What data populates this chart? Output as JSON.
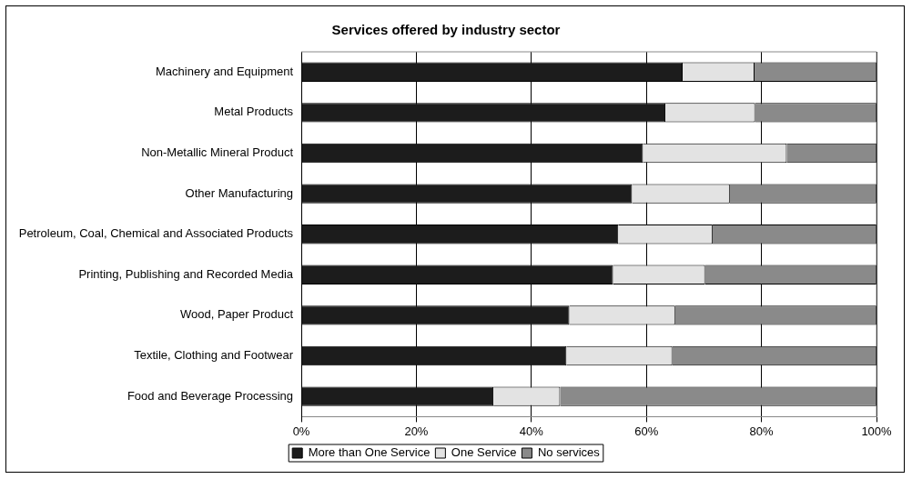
{
  "chart_data": {
    "type": "bar",
    "orientation": "horizontal",
    "stacked": true,
    "title": "Services offered by industry sector",
    "categories": [
      "Machinery and Equipment",
      "Metal Products",
      "Non-Metallic Mineral Product",
      "Other Manufacturing",
      "Petroleum, Coal, Chemical and Associated Products",
      "Printing, Publishing and Recorded Media",
      "Wood, Paper Product",
      "Textile, Clothing and Footwear",
      "Food and Beverage Processing"
    ],
    "series": [
      {
        "name": "More than One Service",
        "color": "#1c1c1c",
        "values": [
          66.3,
          63.3,
          59.4,
          57.5,
          55.1,
          54.2,
          46.6,
          46.1,
          33.4
        ]
      },
      {
        "name": "One Service",
        "color": "#e3e3e3",
        "values": [
          12.5,
          15.6,
          25,
          17,
          16.4,
          16,
          18.4,
          18.4,
          11.6
        ]
      },
      {
        "name": "No services",
        "color": "#8a8a8a",
        "values": [
          21.2,
          21.1,
          15.6,
          25.5,
          28.5,
          29.8,
          35,
          35.5,
          55
        ]
      }
    ],
    "xlim": [
      0,
      100
    ],
    "xticks": [
      {
        "value": 0,
        "label": "0%"
      },
      {
        "value": 20,
        "label": "20%"
      },
      {
        "value": 40,
        "label": "40%"
      },
      {
        "value": 60,
        "label": "60%"
      },
      {
        "value": 80,
        "label": "80%"
      },
      {
        "value": 100,
        "label": "100%"
      }
    ],
    "grid": "x",
    "legend": "bottom"
  }
}
